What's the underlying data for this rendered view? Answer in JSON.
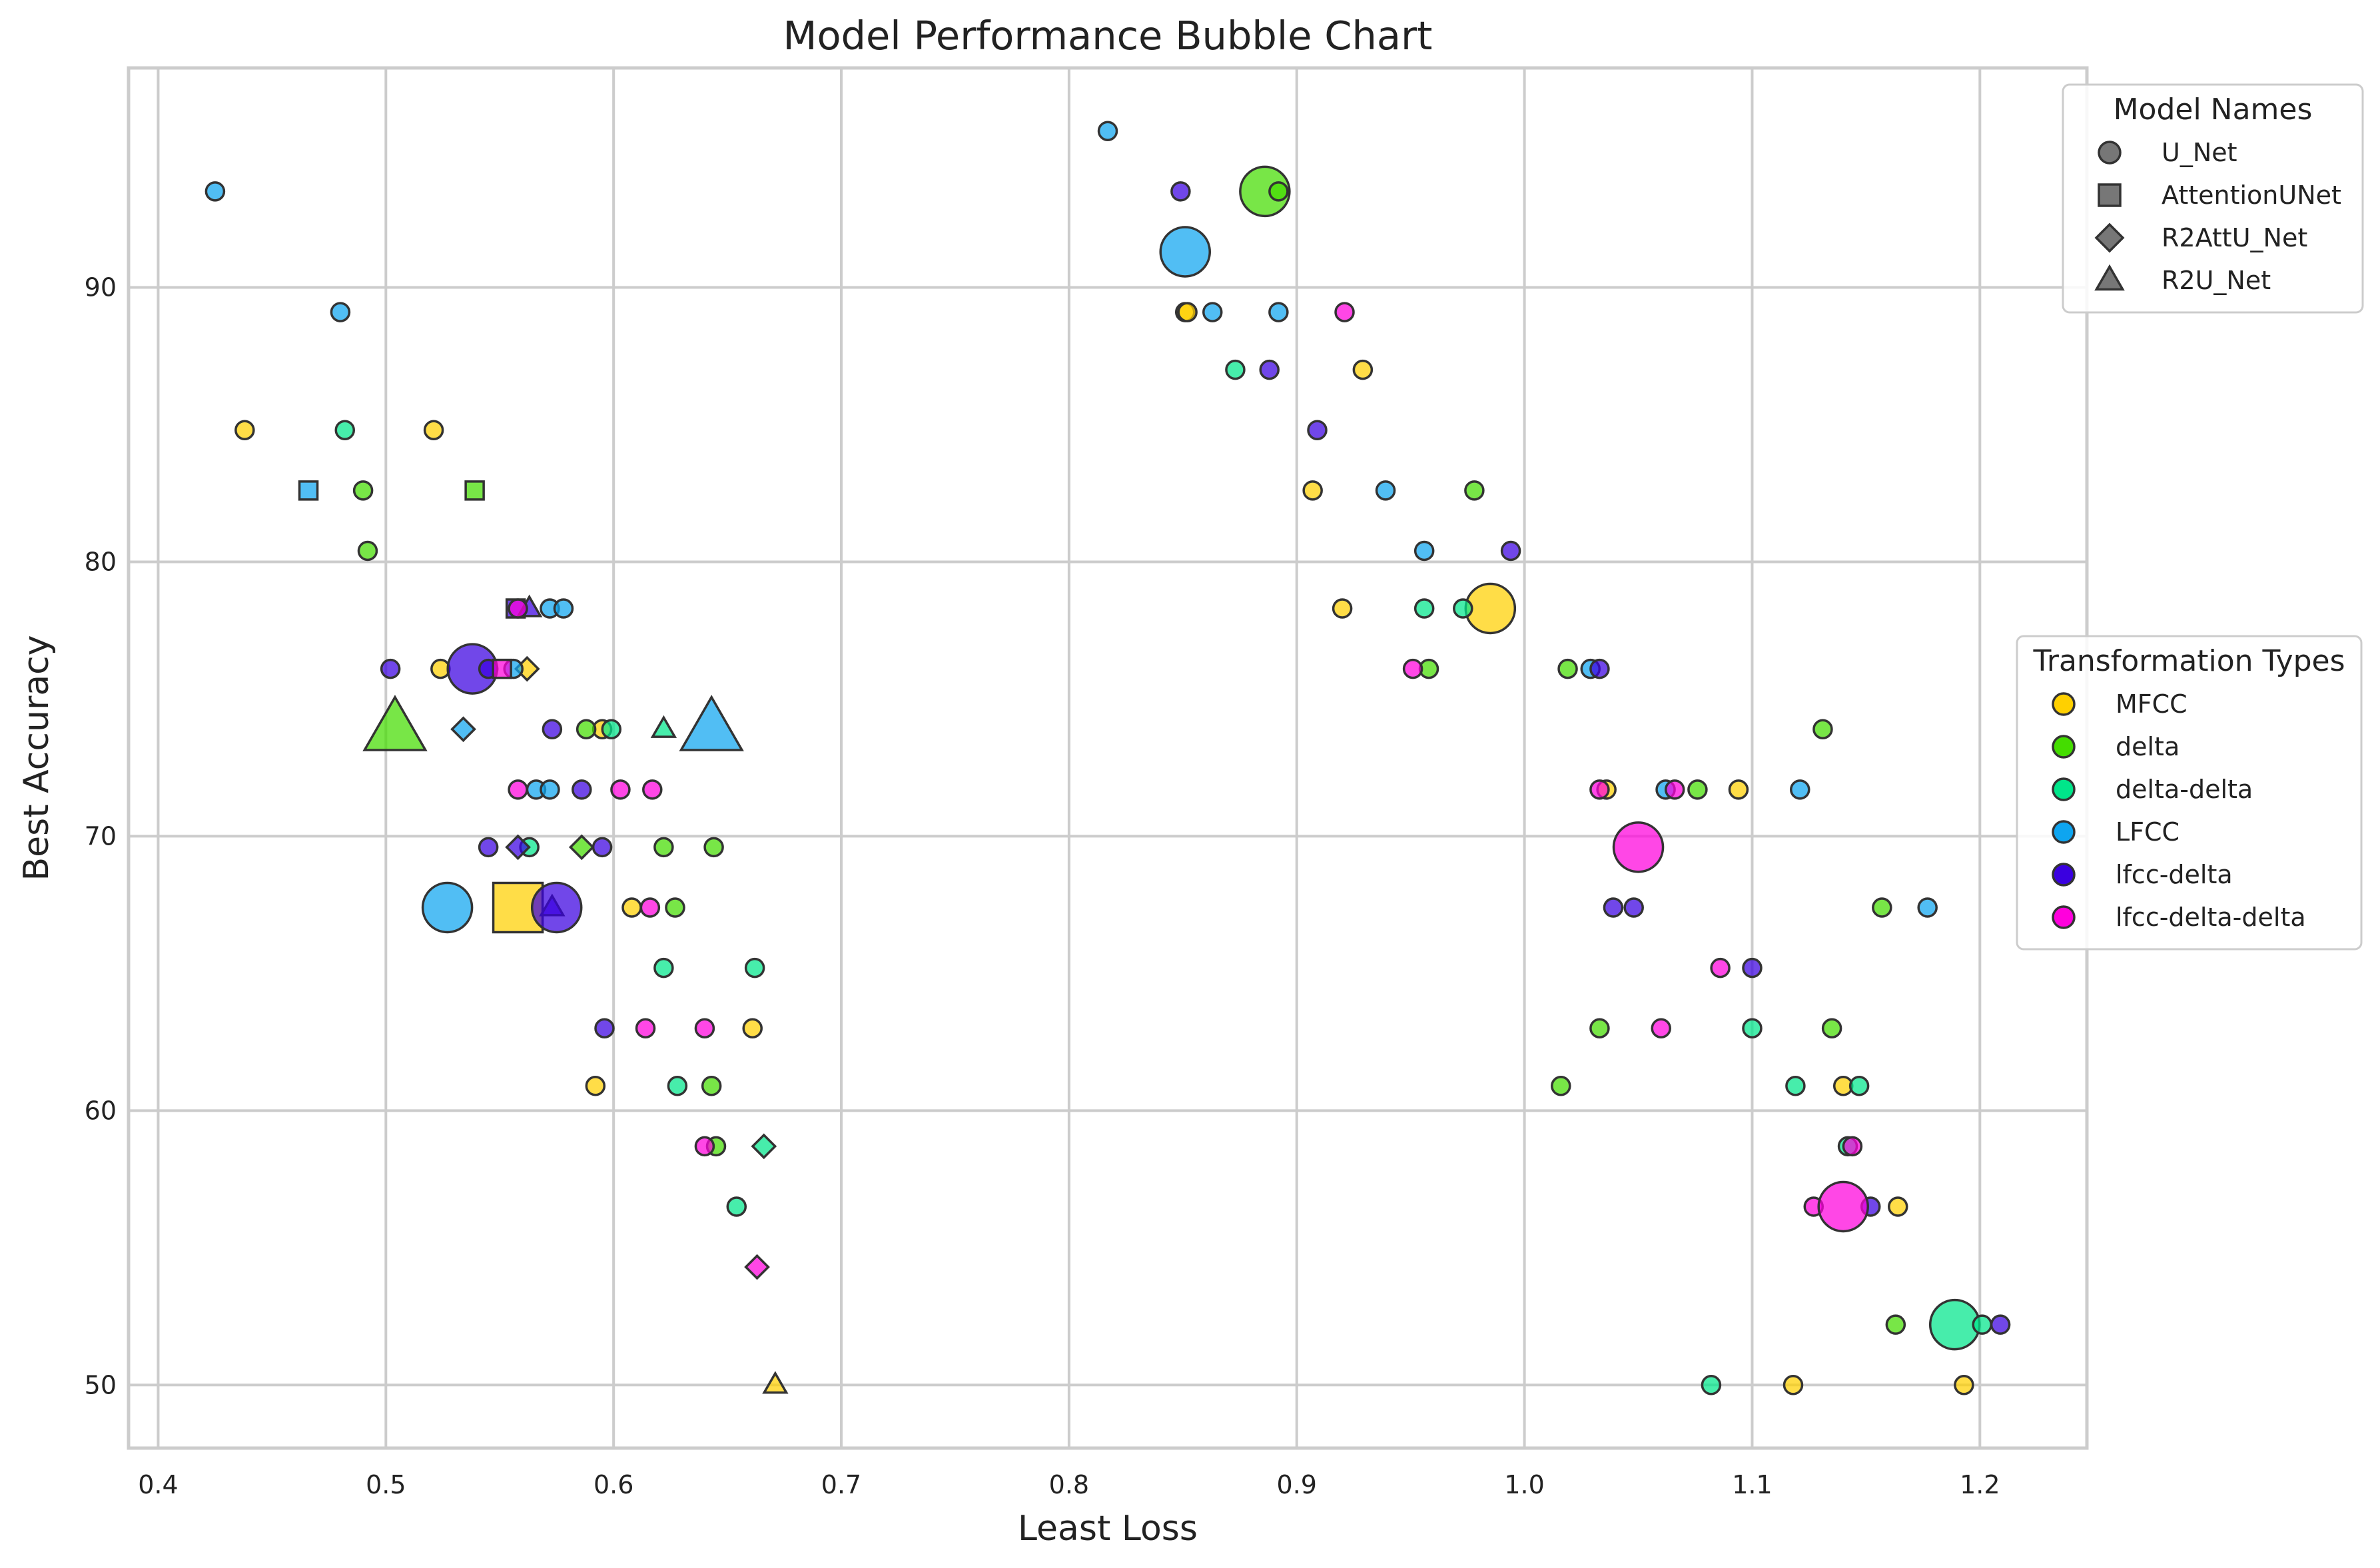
{
  "chart_data": {
    "type": "scatter",
    "title": "Model Performance Bubble Chart",
    "xlabel": "Least Loss",
    "ylabel": "Best Accuracy",
    "xlim": [
      0.387,
      1.247
    ],
    "ylim": [
      47.7,
      98.0
    ],
    "xticks": [
      "0.4",
      "0.5",
      "0.6",
      "0.7",
      "0.8",
      "0.9",
      "1.0",
      "1.1",
      "1.2"
    ],
    "yticks": [
      "50",
      "60",
      "70",
      "80",
      "90"
    ],
    "grid": true,
    "legends": [
      {
        "title": "Model Names",
        "placement": "top-right",
        "entries": [
          {
            "label": "U_Net",
            "marker": "circle"
          },
          {
            "label": "AttentionUNet",
            "marker": "square"
          },
          {
            "label": "R2AttU_Net",
            "marker": "diamond"
          },
          {
            "label": "R2U_Net",
            "marker": "triangle"
          }
        ]
      },
      {
        "title": "Transformation Types",
        "placement": "center-right",
        "entries": [
          {
            "label": "MFCC",
            "color": "#FFD000"
          },
          {
            "label": "delta",
            "color": "#44DD00"
          },
          {
            "label": "delta-delta",
            "color": "#00E68A"
          },
          {
            "label": "LFCC",
            "color": "#0EA5F0"
          },
          {
            "label": "lfcc-delta",
            "color": "#3A00E0"
          },
          {
            "label": "lfcc-delta-delta",
            "color": "#FF00DD"
          }
        ]
      }
    ],
    "colors": {
      "MFCC": "#FFD000",
      "delta": "#44DD00",
      "delta-delta": "#00E68A",
      "LFCC": "#0EA5F0",
      "lfcc-delta": "#3A00E0",
      "lfcc-delta-delta": "#FF00DD"
    },
    "series": [
      {
        "name": "MFCC",
        "points": [
          {
            "x": 0.438,
            "y": 84.8,
            "m": "circle",
            "s": 1
          },
          {
            "x": 0.521,
            "y": 84.8,
            "m": "circle",
            "s": 1
          },
          {
            "x": 0.524,
            "y": 76.1,
            "m": "circle",
            "s": 1
          },
          {
            "x": 0.562,
            "y": 76.1,
            "m": "diamond",
            "s": 1
          },
          {
            "x": 0.595,
            "y": 73.9,
            "m": "circle",
            "s": 1
          },
          {
            "x": 0.592,
            "y": 60.9,
            "m": "circle",
            "s": 1
          },
          {
            "x": 0.608,
            "y": 67.4,
            "m": "circle",
            "s": 1
          },
          {
            "x": 0.661,
            "y": 63.0,
            "m": "circle",
            "s": 1
          },
          {
            "x": 0.671,
            "y": 50.0,
            "m": "triangle",
            "s": 1
          },
          {
            "x": 0.558,
            "y": 67.4,
            "m": "square",
            "s": 3
          },
          {
            "x": 0.851,
            "y": 89.1,
            "m": "circle",
            "s": 1
          },
          {
            "x": 0.852,
            "y": 89.1,
            "m": "circle",
            "s": 1
          },
          {
            "x": 0.907,
            "y": 82.6,
            "m": "circle",
            "s": 1
          },
          {
            "x": 0.92,
            "y": 78.3,
            "m": "circle",
            "s": 1
          },
          {
            "x": 0.929,
            "y": 87.0,
            "m": "circle",
            "s": 1
          },
          {
            "x": 0.985,
            "y": 78.3,
            "m": "circle",
            "s": 3
          },
          {
            "x": 1.036,
            "y": 71.7,
            "m": "circle",
            "s": 1
          },
          {
            "x": 1.094,
            "y": 71.7,
            "m": "circle",
            "s": 1
          },
          {
            "x": 1.118,
            "y": 50.0,
            "m": "circle",
            "s": 1
          },
          {
            "x": 1.14,
            "y": 60.9,
            "m": "circle",
            "s": 1
          },
          {
            "x": 1.164,
            "y": 56.5,
            "m": "circle",
            "s": 1
          },
          {
            "x": 1.193,
            "y": 50.0,
            "m": "circle",
            "s": 1
          }
        ]
      },
      {
        "name": "delta",
        "points": [
          {
            "x": 0.49,
            "y": 82.6,
            "m": "circle",
            "s": 1
          },
          {
            "x": 0.492,
            "y": 80.4,
            "m": "circle",
            "s": 1
          },
          {
            "x": 0.539,
            "y": 82.6,
            "m": "square",
            "s": 1
          },
          {
            "x": 0.504,
            "y": 73.9,
            "m": "triangle",
            "s": 3
          },
          {
            "x": 0.588,
            "y": 73.9,
            "m": "circle",
            "s": 1
          },
          {
            "x": 0.586,
            "y": 69.6,
            "m": "diamond",
            "s": 1
          },
          {
            "x": 0.622,
            "y": 69.6,
            "m": "circle",
            "s": 1
          },
          {
            "x": 0.644,
            "y": 69.6,
            "m": "circle",
            "s": 1
          },
          {
            "x": 0.627,
            "y": 67.4,
            "m": "circle",
            "s": 1
          },
          {
            "x": 0.643,
            "y": 60.9,
            "m": "circle",
            "s": 1
          },
          {
            "x": 0.645,
            "y": 58.7,
            "m": "circle",
            "s": 1
          },
          {
            "x": 0.886,
            "y": 93.5,
            "m": "circle",
            "s": 3
          },
          {
            "x": 0.892,
            "y": 93.5,
            "m": "circle",
            "s": 1
          },
          {
            "x": 0.958,
            "y": 76.1,
            "m": "circle",
            "s": 1
          },
          {
            "x": 0.978,
            "y": 82.6,
            "m": "circle",
            "s": 1
          },
          {
            "x": 1.016,
            "y": 60.9,
            "m": "circle",
            "s": 1
          },
          {
            "x": 1.019,
            "y": 76.1,
            "m": "circle",
            "s": 1
          },
          {
            "x": 1.033,
            "y": 63.0,
            "m": "circle",
            "s": 1
          },
          {
            "x": 1.076,
            "y": 71.7,
            "m": "circle",
            "s": 1
          },
          {
            "x": 1.131,
            "y": 73.9,
            "m": "circle",
            "s": 1
          },
          {
            "x": 1.135,
            "y": 63.0,
            "m": "circle",
            "s": 1
          },
          {
            "x": 1.157,
            "y": 67.4,
            "m": "circle",
            "s": 1
          },
          {
            "x": 1.163,
            "y": 52.2,
            "m": "circle",
            "s": 1
          }
        ]
      },
      {
        "name": "delta-delta",
        "points": [
          {
            "x": 0.482,
            "y": 84.8,
            "m": "circle",
            "s": 1
          },
          {
            "x": 0.563,
            "y": 69.6,
            "m": "circle",
            "s": 1
          },
          {
            "x": 0.599,
            "y": 73.9,
            "m": "circle",
            "s": 1
          },
          {
            "x": 0.622,
            "y": 73.9,
            "m": "triangle",
            "s": 1
          },
          {
            "x": 0.622,
            "y": 65.2,
            "m": "circle",
            "s": 1
          },
          {
            "x": 0.628,
            "y": 60.9,
            "m": "circle",
            "s": 1
          },
          {
            "x": 0.654,
            "y": 56.5,
            "m": "circle",
            "s": 1
          },
          {
            "x": 0.662,
            "y": 65.2,
            "m": "circle",
            "s": 1
          },
          {
            "x": 0.666,
            "y": 58.7,
            "m": "diamond",
            "s": 1
          },
          {
            "x": 0.873,
            "y": 87.0,
            "m": "circle",
            "s": 1
          },
          {
            "x": 0.956,
            "y": 78.3,
            "m": "circle",
            "s": 1
          },
          {
            "x": 0.973,
            "y": 78.3,
            "m": "circle",
            "s": 1
          },
          {
            "x": 1.082,
            "y": 50.0,
            "m": "circle",
            "s": 1
          },
          {
            "x": 1.1,
            "y": 63.0,
            "m": "circle",
            "s": 1
          },
          {
            "x": 1.119,
            "y": 60.9,
            "m": "circle",
            "s": 1
          },
          {
            "x": 1.142,
            "y": 58.7,
            "m": "circle",
            "s": 1
          },
          {
            "x": 1.147,
            "y": 60.9,
            "m": "circle",
            "s": 1
          },
          {
            "x": 1.189,
            "y": 52.2,
            "m": "circle",
            "s": 3
          },
          {
            "x": 1.201,
            "y": 52.2,
            "m": "circle",
            "s": 1
          }
        ]
      },
      {
        "name": "LFCC",
        "points": [
          {
            "x": 0.425,
            "y": 93.5,
            "m": "circle",
            "s": 1
          },
          {
            "x": 0.466,
            "y": 82.6,
            "m": "square",
            "s": 1
          },
          {
            "x": 0.48,
            "y": 89.1,
            "m": "circle",
            "s": 1
          },
          {
            "x": 0.534,
            "y": 73.9,
            "m": "diamond",
            "s": 1
          },
          {
            "x": 0.527,
            "y": 67.4,
            "m": "circle",
            "s": 3
          },
          {
            "x": 0.556,
            "y": 76.1,
            "m": "circle",
            "s": 1
          },
          {
            "x": 0.566,
            "y": 71.7,
            "m": "circle",
            "s": 1
          },
          {
            "x": 0.572,
            "y": 71.7,
            "m": "circle",
            "s": 1
          },
          {
            "x": 0.572,
            "y": 78.3,
            "m": "circle",
            "s": 1
          },
          {
            "x": 0.578,
            "y": 78.3,
            "m": "circle",
            "s": 1
          },
          {
            "x": 0.643,
            "y": 73.9,
            "m": "triangle",
            "s": 3
          },
          {
            "x": 0.817,
            "y": 95.7,
            "m": "circle",
            "s": 1
          },
          {
            "x": 0.851,
            "y": 91.3,
            "m": "circle",
            "s": 3
          },
          {
            "x": 0.863,
            "y": 89.1,
            "m": "circle",
            "s": 1
          },
          {
            "x": 0.892,
            "y": 89.1,
            "m": "circle",
            "s": 1
          },
          {
            "x": 0.939,
            "y": 82.6,
            "m": "circle",
            "s": 1
          },
          {
            "x": 0.956,
            "y": 80.4,
            "m": "circle",
            "s": 1
          },
          {
            "x": 1.029,
            "y": 76.1,
            "m": "circle",
            "s": 1
          },
          {
            "x": 1.062,
            "y": 71.7,
            "m": "circle",
            "s": 1
          },
          {
            "x": 1.121,
            "y": 71.7,
            "m": "circle",
            "s": 1
          },
          {
            "x": 1.177,
            "y": 67.4,
            "m": "circle",
            "s": 1
          }
        ]
      },
      {
        "name": "lfcc-delta",
        "points": [
          {
            "x": 0.502,
            "y": 76.1,
            "m": "circle",
            "s": 1
          },
          {
            "x": 0.538,
            "y": 76.1,
            "m": "circle",
            "s": 3
          },
          {
            "x": 0.545,
            "y": 76.1,
            "m": "circle",
            "s": 1
          },
          {
            "x": 0.545,
            "y": 69.6,
            "m": "circle",
            "s": 1
          },
          {
            "x": 0.557,
            "y": 78.3,
            "m": "square",
            "s": 1
          },
          {
            "x": 0.563,
            "y": 78.3,
            "m": "triangle",
            "s": 1
          },
          {
            "x": 0.558,
            "y": 69.6,
            "m": "diamond",
            "s": 1
          },
          {
            "x": 0.573,
            "y": 73.9,
            "m": "circle",
            "s": 1
          },
          {
            "x": 0.573,
            "y": 67.4,
            "m": "triangle",
            "s": 1
          },
          {
            "x": 0.575,
            "y": 67.4,
            "m": "circle",
            "s": 3
          },
          {
            "x": 0.586,
            "y": 71.7,
            "m": "circle",
            "s": 1
          },
          {
            "x": 0.595,
            "y": 69.6,
            "m": "circle",
            "s": 1
          },
          {
            "x": 0.596,
            "y": 63.0,
            "m": "circle",
            "s": 1
          },
          {
            "x": 0.849,
            "y": 93.5,
            "m": "circle",
            "s": 1
          },
          {
            "x": 0.888,
            "y": 87.0,
            "m": "circle",
            "s": 1
          },
          {
            "x": 0.909,
            "y": 84.8,
            "m": "circle",
            "s": 1
          },
          {
            "x": 0.994,
            "y": 80.4,
            "m": "circle",
            "s": 1
          },
          {
            "x": 1.033,
            "y": 76.1,
            "m": "circle",
            "s": 1
          },
          {
            "x": 1.039,
            "y": 67.4,
            "m": "circle",
            "s": 1
          },
          {
            "x": 1.048,
            "y": 67.4,
            "m": "circle",
            "s": 1
          },
          {
            "x": 1.1,
            "y": 65.2,
            "m": "circle",
            "s": 1
          },
          {
            "x": 1.152,
            "y": 56.5,
            "m": "circle",
            "s": 1
          },
          {
            "x": 1.209,
            "y": 52.2,
            "m": "circle",
            "s": 1
          }
        ]
      },
      {
        "name": "lfcc-delta-delta",
        "points": [
          {
            "x": 0.551,
            "y": 76.1,
            "m": "square",
            "s": 1
          },
          {
            "x": 0.558,
            "y": 78.3,
            "m": "circle",
            "s": 1
          },
          {
            "x": 0.558,
            "y": 71.7,
            "m": "circle",
            "s": 1
          },
          {
            "x": 0.603,
            "y": 71.7,
            "m": "circle",
            "s": 1
          },
          {
            "x": 0.614,
            "y": 63.0,
            "m": "circle",
            "s": 1
          },
          {
            "x": 0.616,
            "y": 67.4,
            "m": "circle",
            "s": 1
          },
          {
            "x": 0.617,
            "y": 71.7,
            "m": "circle",
            "s": 1
          },
          {
            "x": 0.64,
            "y": 63.0,
            "m": "circle",
            "s": 1
          },
          {
            "x": 0.64,
            "y": 58.7,
            "m": "circle",
            "s": 1
          },
          {
            "x": 0.663,
            "y": 54.3,
            "m": "diamond",
            "s": 1
          },
          {
            "x": 0.921,
            "y": 89.1,
            "m": "circle",
            "s": 1
          },
          {
            "x": 0.951,
            "y": 76.1,
            "m": "circle",
            "s": 1
          },
          {
            "x": 1.033,
            "y": 71.7,
            "m": "circle",
            "s": 1
          },
          {
            "x": 1.05,
            "y": 69.6,
            "m": "circle",
            "s": 3
          },
          {
            "x": 1.06,
            "y": 63.0,
            "m": "circle",
            "s": 1
          },
          {
            "x": 1.066,
            "y": 71.7,
            "m": "circle",
            "s": 1
          },
          {
            "x": 1.086,
            "y": 65.2,
            "m": "circle",
            "s": 1
          },
          {
            "x": 1.127,
            "y": 56.5,
            "m": "circle",
            "s": 1
          },
          {
            "x": 1.14,
            "y": 56.5,
            "m": "circle",
            "s": 3
          },
          {
            "x": 1.144,
            "y": 58.7,
            "m": "circle",
            "s": 1
          }
        ]
      }
    ]
  }
}
